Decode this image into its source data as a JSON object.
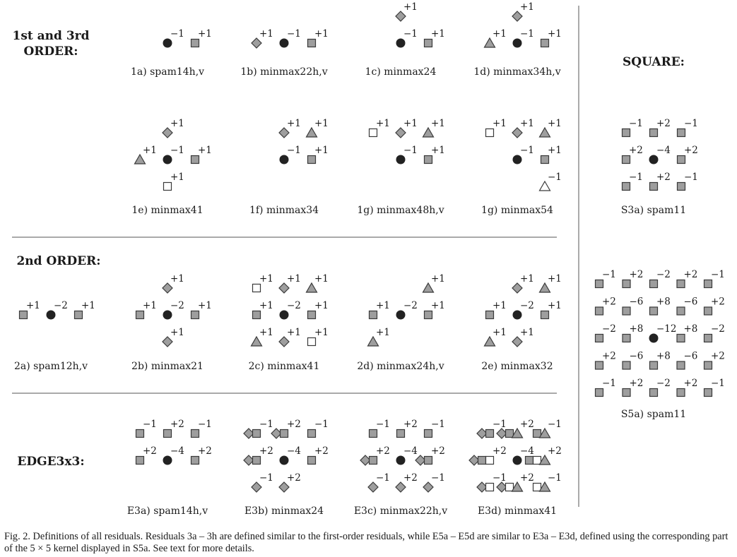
{
  "colors": {
    "fill_gray": "#9e9e9e",
    "stroke": "#3a3a3a",
    "dot": "#222222",
    "open": "#ffffff"
  },
  "section_labels": {
    "first_third_line1": "1st and 3rd",
    "first_third_line2": "ORDER:",
    "square": "SQUARE:",
    "second": "2nd ORDER:",
    "edge": "EDGE3x3:"
  },
  "panel_labels": {
    "p1a": "1a) spam14h,v",
    "p1b": "1b) minmax22h,v",
    "p1c": "1c) minmax24",
    "p1d": "1d) minmax34h,v",
    "p1e": "1e) minmax41",
    "p1f": "1f) minmax34",
    "p1g1": "1g) minmax48h,v",
    "p1g2": "1g) minmax54",
    "pS3a": "S3a) spam11",
    "p2a": "2a) spam12h,v",
    "p2b": "2b) minmax21",
    "p2c": "2c) minmax41",
    "p2d": "2d) minmax24h,v",
    "p2e": "2e) minmax32",
    "pS5a": "S5a) spam11",
    "pE3a": "E3a) spam14h,v",
    "pE3b": "E3b) minmax24",
    "pE3c": "E3c) minmax22h,v",
    "pE3d": "E3d) minmax41"
  },
  "coefficients": {
    "m1": "−1",
    "p1": "+1",
    "m2": "−2",
    "p2": "+2",
    "m4": "−4",
    "m6": "−6",
    "p8": "+8",
    "m12": "−12"
  },
  "caption": {
    "figure": "Fig. 2.",
    "text": "Definitions of all residuals. Residuals 3a – 3h are defined similar to the first-order residuals, while E5a – E5d are similar to E3a – E3d, defined using the corresponding part of the 5 × 5 kernel displayed in S5a. See text for more details."
  },
  "icons": [
    "circle-dot-icon",
    "square-icon",
    "diamond-icon",
    "triangle-icon",
    "open-square-icon"
  ]
}
